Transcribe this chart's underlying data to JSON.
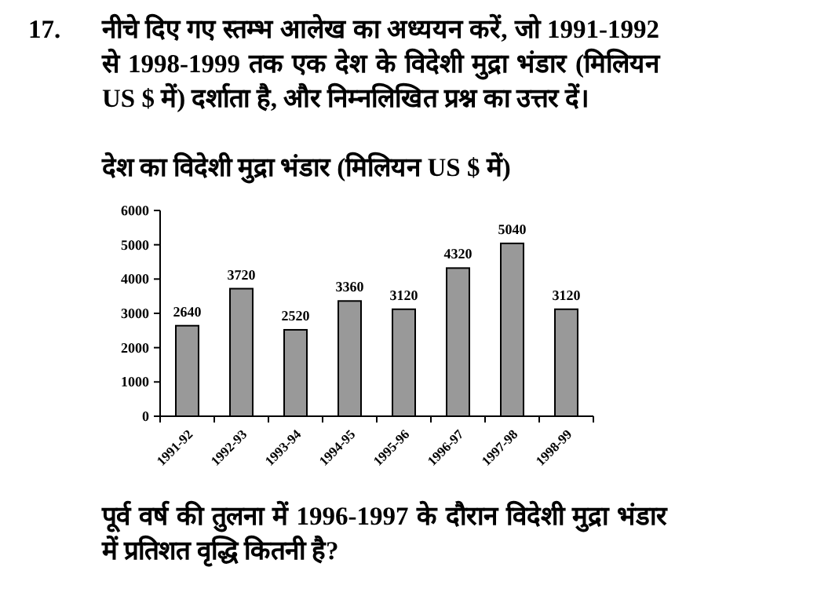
{
  "chart_data": {
    "type": "bar",
    "title": "देश का विदेशी मुद्रा भंडार (मिलियन US $ में)",
    "annotations": [
      "17.",
      "नीचे दिए गए स्तम्भ आलेख का अध्ययन करें, जो 1991-1992 से 1998-1999 तक एक देश के विदेशी मुद्रा भंडार (मिलियन US $ में) दर्शाता है, और निम्नलिखित प्रश्न का उत्तर दें।",
      "पूर्व वर्ष की तुलना में 1996-1997 के दौरान विदेशी मुद्रा भंडार में प्रतिशत वृद्धि कितनी है?"
    ],
    "categories": [
      "1991-92",
      "1992-93",
      "1993-94",
      "1994-95",
      "1995-96",
      "1996-97",
      "1997-98",
      "1998-99"
    ],
    "values": [
      2640,
      3720,
      2520,
      3360,
      3120,
      4320,
      5040,
      3120
    ],
    "color": "#999999",
    "ylim": [
      0,
      6000
    ],
    "yticks": [
      0,
      1000,
      2000,
      3000,
      4000,
      5000,
      6000
    ],
    "data_labels": true,
    "grid": false
  }
}
